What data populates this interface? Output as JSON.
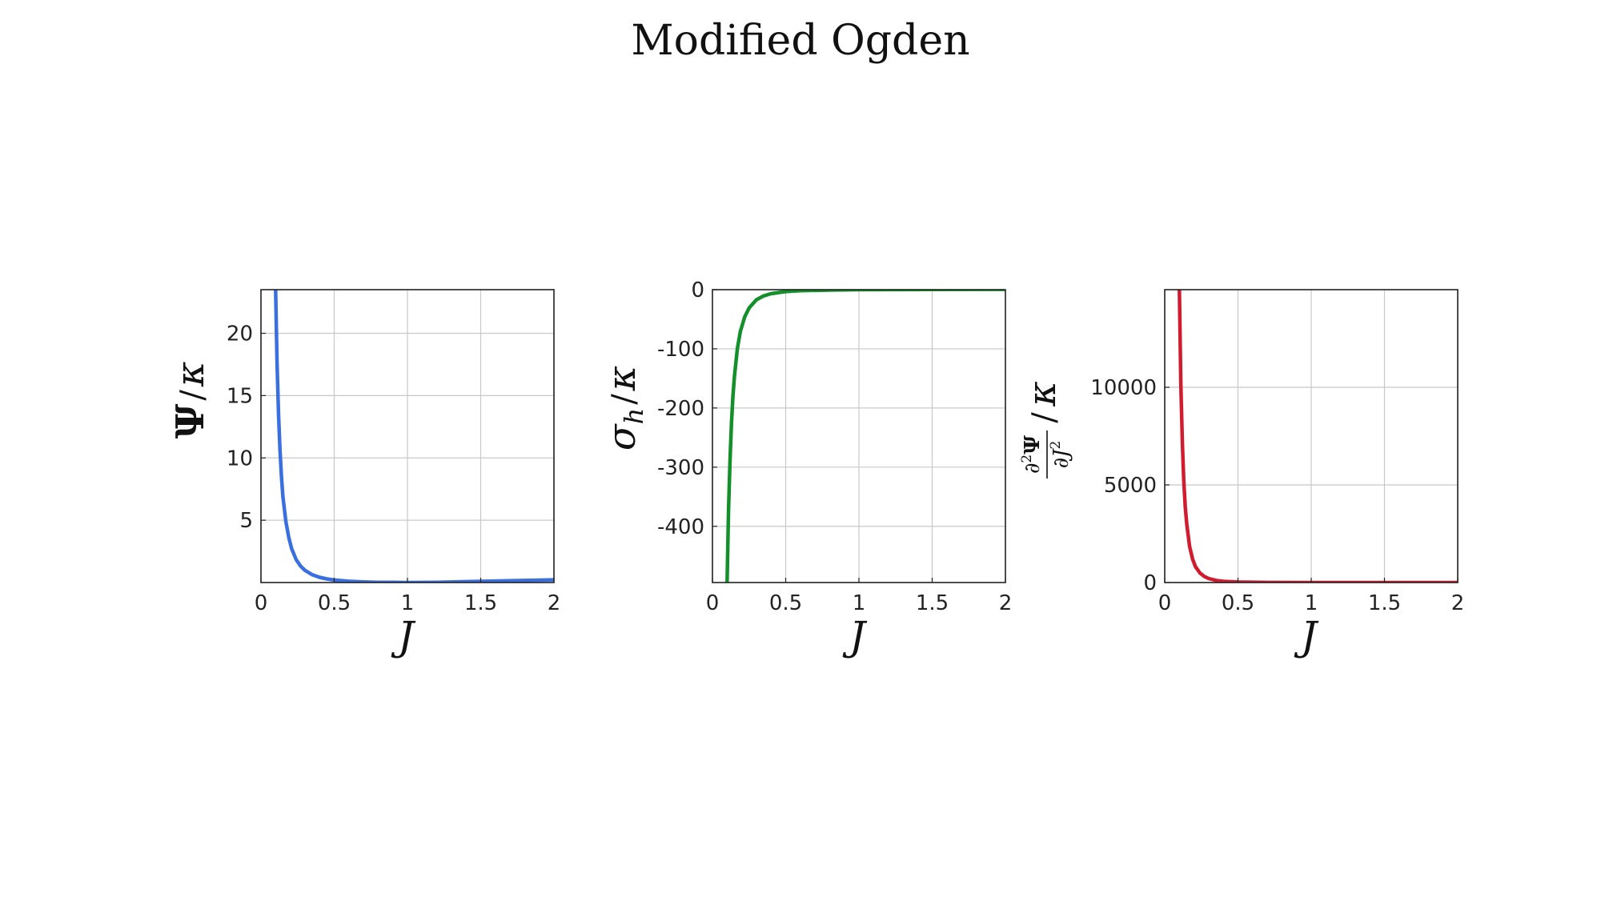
{
  "title": "Modified Ogden",
  "chart_data": [
    {
      "type": "line",
      "xlabel": "J",
      "ylabel": "Ψ/κ",
      "xlim": [
        0,
        2
      ],
      "ylim": [
        0,
        23.5
      ],
      "xticks": [
        "0",
        "0.5",
        "1",
        "1.5",
        "2"
      ],
      "yticks": [
        "5",
        "10",
        "15",
        "20"
      ],
      "grid": true,
      "series": [
        {
          "color": "#3a6fe0",
          "x": [
            0.1,
            0.11,
            0.12,
            0.13,
            0.14,
            0.15,
            0.17,
            0.19,
            0.21,
            0.24,
            0.27,
            0.3,
            0.35,
            0.4,
            0.45,
            0.5,
            0.6,
            0.7,
            0.8,
            0.9,
            1.0,
            1.2,
            1.4,
            1.6,
            1.8,
            2.0
          ],
          "y": [
            23.5,
            17.6,
            13.4,
            10.6,
            8.5,
            6.9,
            4.9,
            3.6,
            2.7,
            1.85,
            1.32,
            0.98,
            0.62,
            0.42,
            0.29,
            0.2,
            0.1,
            0.05,
            0.02,
            0.01,
            0.0,
            0.02,
            0.07,
            0.12,
            0.17,
            0.22
          ]
        }
      ]
    },
    {
      "type": "line",
      "xlabel": "J",
      "ylabel": "σ_h/κ",
      "xlim": [
        0,
        2
      ],
      "ylim": [
        -495,
        0
      ],
      "xticks": [
        "0",
        "0.5",
        "1",
        "1.5",
        "2"
      ],
      "yticks": [
        "0",
        "-100",
        "-200",
        "-300",
        "-400"
      ],
      "grid": true,
      "series": [
        {
          "color": "#13902a",
          "x": [
            0.1,
            0.11,
            0.12,
            0.13,
            0.14,
            0.15,
            0.17,
            0.19,
            0.22,
            0.25,
            0.3,
            0.35,
            0.4,
            0.5,
            0.6,
            0.8,
            1.0,
            1.5,
            2.0
          ],
          "y": [
            -495,
            -372,
            -287,
            -225,
            -180,
            -146,
            -100,
            -71,
            -46,
            -31,
            -17,
            -10.5,
            -6.7,
            -3.2,
            -1.8,
            -0.7,
            0,
            0.3,
            0.5
          ]
        }
      ]
    },
    {
      "type": "line",
      "xlabel": "J",
      "ylabel": "∂²Ψ/∂J² / κ",
      "xlim": [
        0,
        2
      ],
      "ylim": [
        0,
        15000
      ],
      "xticks": [
        "0",
        "0.5",
        "1",
        "1.5",
        "2"
      ],
      "yticks": [
        "0",
        "5000",
        "10000"
      ],
      "grid": true,
      "series": [
        {
          "color": "#d01c2e",
          "x": [
            0.1,
            0.11,
            0.12,
            0.13,
            0.14,
            0.15,
            0.17,
            0.19,
            0.21,
            0.24,
            0.27,
            0.3,
            0.35,
            0.4,
            0.5,
            0.7,
            1.0,
            1.5,
            2.0
          ],
          "y": [
            15000,
            10200,
            7200,
            5200,
            3900,
            3000,
            1840,
            1200,
            810,
            490,
            310,
            205,
            110,
            62,
            24,
            5,
            1,
            0,
            0
          ]
        }
      ]
    }
  ]
}
